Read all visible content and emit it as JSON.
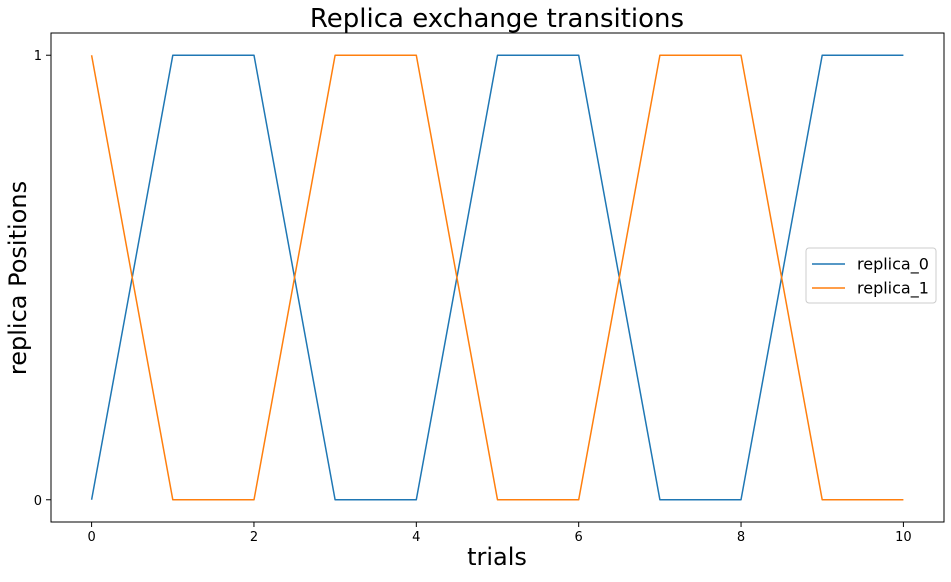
{
  "chart_data": {
    "type": "line",
    "title": "Replica exchange transitions",
    "xlabel": "trials",
    "ylabel": "replica Positions",
    "x": [
      0,
      1,
      2,
      3,
      4,
      5,
      6,
      7,
      8,
      9,
      10
    ],
    "xlim": [
      -0.5,
      10.5
    ],
    "ylim": [
      -0.05,
      1.05
    ],
    "xticks": [
      0,
      2,
      4,
      6,
      8,
      10
    ],
    "xtick_labels": [
      "0",
      "2",
      "4",
      "6",
      "8",
      "10"
    ],
    "yticks": [
      0,
      1
    ],
    "ytick_labels": [
      "0",
      "1"
    ],
    "grid": false,
    "legend_position": "center-right",
    "series": [
      {
        "name": "replica_0",
        "color": "#1f77b4",
        "values": [
          0,
          1,
          1,
          0,
          0,
          1,
          1,
          0,
          0,
          1,
          1
        ]
      },
      {
        "name": "replica_1",
        "color": "#ff7f0e",
        "values": [
          1,
          0,
          0,
          1,
          1,
          0,
          0,
          1,
          1,
          0,
          0
        ]
      }
    ]
  }
}
